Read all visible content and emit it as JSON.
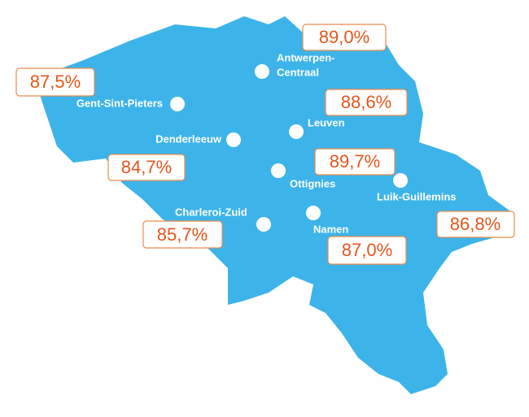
{
  "stations": [
    {
      "label": [
        "Antwerpen-",
        "Centraal"
      ]
    },
    {
      "label": "Gent-Sint-Pieters"
    },
    {
      "label": "Leuven"
    },
    {
      "label": "Denderleeuw"
    },
    {
      "label": "Ottignies"
    },
    {
      "label": "Luik-Guillemins"
    },
    {
      "label": "Charleroi-Zuid"
    },
    {
      "label": "Namen"
    }
  ],
  "percentages": [
    "89,0%",
    "87,5%",
    "88,6%",
    "84,7%",
    "89,7%",
    "86,8%",
    "85,7%",
    "87,0%"
  ]
}
